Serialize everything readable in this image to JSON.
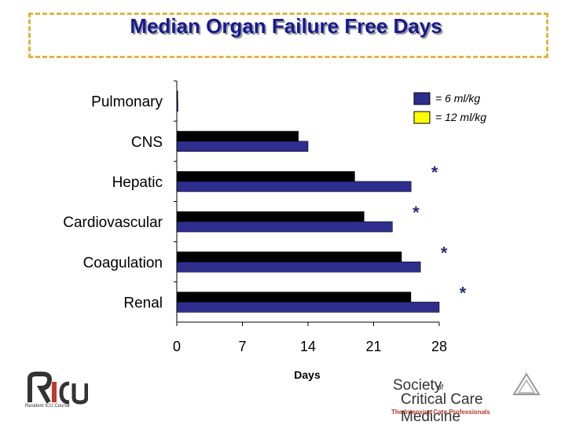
{
  "title": "Median Organ Failure Free Days",
  "colors": {
    "series_6": "#2e2e8f",
    "series_12": "#000000",
    "legend_12_swatch": "#ffff00",
    "star": "#2b2b7a",
    "title": "#16198f",
    "frame": "#e3b341"
  },
  "chart_data": {
    "type": "bar",
    "orientation": "horizontal",
    "categories": [
      "Pulmonary",
      "CNS",
      "Hepatic",
      "Cardiovascular",
      "Coagulation",
      "Renal"
    ],
    "series": [
      {
        "name": "= 6 ml/kg",
        "values": [
          0,
          14,
          25,
          23,
          26,
          28
        ]
      },
      {
        "name": "= 12 ml/kg",
        "values": [
          0,
          13,
          19,
          20,
          24,
          25
        ]
      }
    ],
    "significance": [
      "",
      "",
      "*",
      "*",
      "*",
      "*"
    ],
    "xlabel": "Days",
    "xlim": [
      0,
      28
    ],
    "xticks": [
      "0",
      "7",
      "14",
      "21",
      "28"
    ],
    "legend_position": "top-right",
    "grid": false
  },
  "logos": {
    "left_mark": "RICU",
    "left_caption": "Resident ICU Course",
    "right_society": "Society",
    "right_of": "of",
    "right_name": "Critical Care Medicine",
    "right_tagline": "The Intensive Care Professionals"
  }
}
